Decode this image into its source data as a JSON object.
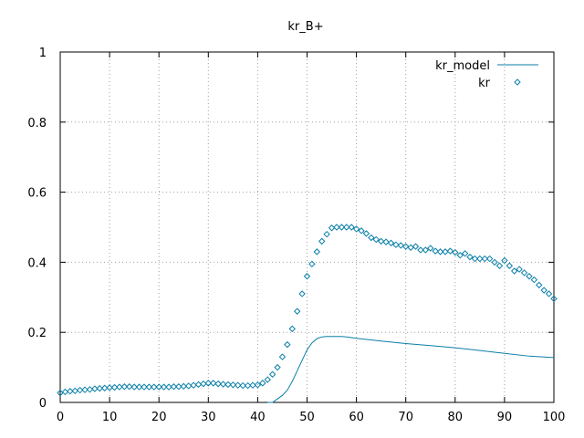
{
  "chart_data": {
    "type": "line",
    "title": "kr_B+",
    "xlabel": "",
    "ylabel": "",
    "xlim": [
      0,
      100
    ],
    "ylim": [
      0,
      1
    ],
    "x_ticks": [
      0,
      10,
      20,
      30,
      40,
      50,
      60,
      70,
      80,
      90,
      100
    ],
    "y_ticks": [
      0,
      0.2,
      0.4,
      0.6,
      0.8,
      1
    ],
    "y_tick_labels": [
      "0",
      "0.2",
      "0.4",
      "0.6",
      "0.8",
      "1"
    ],
    "grid": true,
    "legend_position": "top-right",
    "series": [
      {
        "name": "kr_model",
        "style": "line",
        "color": "#0b7fa8",
        "x": [
          42,
          43,
          44,
          45,
          46,
          47,
          48,
          49,
          50,
          51,
          52,
          53,
          54,
          55,
          56,
          57,
          58,
          60,
          65,
          70,
          75,
          80,
          85,
          90,
          95,
          100
        ],
        "y": [
          0,
          0.0,
          0.01,
          0.02,
          0.035,
          0.06,
          0.09,
          0.12,
          0.15,
          0.17,
          0.182,
          0.187,
          0.188,
          0.188,
          0.188,
          0.188,
          0.187,
          0.183,
          0.175,
          0.168,
          0.162,
          0.156,
          0.148,
          0.14,
          0.132,
          0.128
        ]
      },
      {
        "name": "kr",
        "style": "points",
        "color": "#0b7fa8",
        "x": [
          0,
          1,
          2,
          3,
          4,
          5,
          6,
          7,
          8,
          9,
          10,
          11,
          12,
          13,
          14,
          15,
          16,
          17,
          18,
          19,
          20,
          21,
          22,
          23,
          24,
          25,
          26,
          27,
          28,
          29,
          30,
          31,
          32,
          33,
          34,
          35,
          36,
          37,
          38,
          39,
          40,
          41,
          42,
          43,
          44,
          45,
          46,
          47,
          48,
          49,
          50,
          51,
          52,
          53,
          54,
          55,
          56,
          57,
          58,
          59,
          60,
          61,
          62,
          63,
          64,
          65,
          66,
          67,
          68,
          69,
          70,
          71,
          72,
          73,
          74,
          75,
          76,
          77,
          78,
          79,
          80,
          81,
          82,
          83,
          84,
          85,
          86,
          87,
          88,
          89,
          90,
          91,
          92,
          93,
          94,
          95,
          96,
          97,
          98,
          99,
          100
        ],
        "y": [
          0.027,
          0.03,
          0.032,
          0.033,
          0.035,
          0.036,
          0.037,
          0.039,
          0.04,
          0.041,
          0.042,
          0.043,
          0.044,
          0.045,
          0.045,
          0.044,
          0.044,
          0.044,
          0.044,
          0.044,
          0.044,
          0.044,
          0.044,
          0.045,
          0.045,
          0.046,
          0.047,
          0.049,
          0.051,
          0.053,
          0.055,
          0.055,
          0.053,
          0.052,
          0.051,
          0.05,
          0.049,
          0.048,
          0.048,
          0.049,
          0.05,
          0.055,
          0.065,
          0.08,
          0.1,
          0.13,
          0.165,
          0.21,
          0.26,
          0.31,
          0.36,
          0.395,
          0.43,
          0.46,
          0.48,
          0.498,
          0.5,
          0.5,
          0.5,
          0.5,
          0.495,
          0.49,
          0.482,
          0.47,
          0.465,
          0.46,
          0.458,
          0.455,
          0.45,
          0.448,
          0.445,
          0.442,
          0.445,
          0.435,
          0.435,
          0.44,
          0.432,
          0.43,
          0.43,
          0.432,
          0.428,
          0.42,
          0.425,
          0.415,
          0.41,
          0.41,
          0.41,
          0.41,
          0.4,
          0.39,
          0.405,
          0.39,
          0.375,
          0.38,
          0.37,
          0.36,
          0.35,
          0.335,
          0.32,
          0.31,
          0.296
        ]
      }
    ]
  }
}
